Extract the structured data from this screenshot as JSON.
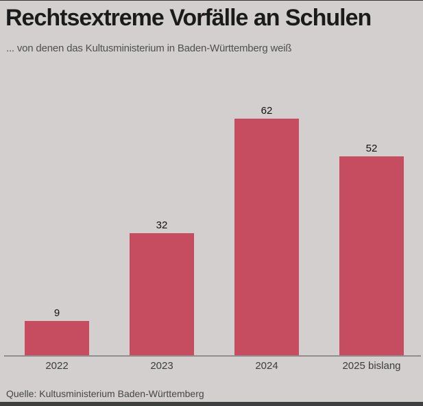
{
  "header": {
    "title": "Rechtsextreme Vorfälle an Schulen",
    "subtitle": "... von denen das Kultusministerium in Baden-Württemberg weiß"
  },
  "chart_data": {
    "type": "bar",
    "categories": [
      "2022",
      "2023",
      "2024",
      "2025 bislang"
    ],
    "values": [
      9,
      32,
      62,
      52
    ],
    "title": "Rechtsextreme Vorfälle an Schulen",
    "subtitle": "... von denen das Kultusministerium in Baden-Württemberg weiß",
    "xlabel": "",
    "ylabel": "",
    "ylim": [
      0,
      70
    ],
    "grid": false,
    "legend": false,
    "value_labels_shown": true,
    "bar_color": "#c64d5f"
  },
  "footer": {
    "source": "Quelle: Kultusministerium Baden-Württemberg"
  },
  "colors": {
    "background": "#d3cfcf",
    "bar": "#c64d5f",
    "axis_line": "#918d8d",
    "title_text": "#1b1b1b",
    "subtitle_text": "#4f4f4f",
    "tick_text": "#3c3c3c",
    "source_text": "#454545",
    "bottom_strip": "#3f3f3f"
  }
}
